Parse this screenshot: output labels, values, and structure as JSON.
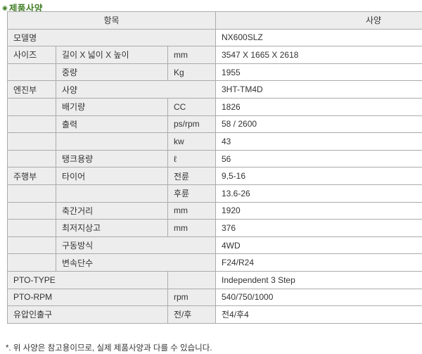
{
  "section": {
    "bullet_glyph": "◉",
    "title": "제품사양",
    "footnote": "*. 위 사양은 참고용이므로, 실제 제품사양과 다를 수 있습니다."
  },
  "colors": {
    "title_green": "#3e7c22",
    "label_bg": "#ededed",
    "border": "#ababab"
  },
  "table": {
    "header_item": "항목",
    "header_spec": "사양",
    "rows": [
      {
        "cells": [
          {
            "text": "모델명",
            "span": 3,
            "kind": "label"
          },
          {
            "text": "NX600SLZ",
            "kind": "value"
          }
        ]
      },
      {
        "cells": [
          {
            "text": "사이즈",
            "kind": "label"
          },
          {
            "text": "길이 X 넓이 X 높이",
            "kind": "label"
          },
          {
            "text": "mm",
            "kind": "label"
          },
          {
            "text": "3547 X 1665 X 2618",
            "kind": "value"
          }
        ]
      },
      {
        "cells": [
          {
            "text": "",
            "kind": "label"
          },
          {
            "text": "중량",
            "kind": "label"
          },
          {
            "text": "Kg",
            "kind": "label"
          },
          {
            "text": "1955",
            "kind": "value"
          }
        ]
      },
      {
        "cells": [
          {
            "text": "엔진부",
            "kind": "label"
          },
          {
            "text": "사양",
            "span": 2,
            "kind": "label"
          },
          {
            "text": "3HT-TM4D",
            "kind": "value"
          }
        ]
      },
      {
        "cells": [
          {
            "text": "",
            "kind": "label"
          },
          {
            "text": "배기량",
            "kind": "label"
          },
          {
            "text": "CC",
            "kind": "label"
          },
          {
            "text": "1826",
            "kind": "value"
          }
        ]
      },
      {
        "cells": [
          {
            "text": "",
            "kind": "label"
          },
          {
            "text": "출력",
            "kind": "label"
          },
          {
            "text": "ps/rpm",
            "kind": "label"
          },
          {
            "text": "58 / 2600",
            "kind": "value"
          }
        ]
      },
      {
        "cells": [
          {
            "text": "",
            "kind": "label"
          },
          {
            "text": "",
            "kind": "label"
          },
          {
            "text": "kw",
            "kind": "label"
          },
          {
            "text": "43",
            "kind": "value"
          }
        ]
      },
      {
        "cells": [
          {
            "text": "",
            "kind": "label"
          },
          {
            "text": "탱크용량",
            "kind": "label"
          },
          {
            "text": "ℓ",
            "kind": "label"
          },
          {
            "text": "56",
            "kind": "value"
          }
        ]
      },
      {
        "cells": [
          {
            "text": "주행부",
            "kind": "label"
          },
          {
            "text": "타이어",
            "kind": "label"
          },
          {
            "text": "전륜",
            "kind": "label"
          },
          {
            "text": "9,5-16",
            "kind": "value"
          }
        ]
      },
      {
        "cells": [
          {
            "text": "",
            "kind": "label"
          },
          {
            "text": "",
            "kind": "label"
          },
          {
            "text": "후륜",
            "kind": "label"
          },
          {
            "text": "13.6-26",
            "kind": "value"
          }
        ]
      },
      {
        "cells": [
          {
            "text": "",
            "kind": "label"
          },
          {
            "text": "축간거리",
            "kind": "label"
          },
          {
            "text": "mm",
            "kind": "label"
          },
          {
            "text": "1920",
            "kind": "value"
          }
        ]
      },
      {
        "cells": [
          {
            "text": "",
            "kind": "label"
          },
          {
            "text": "최저지상고",
            "kind": "label"
          },
          {
            "text": "mm",
            "kind": "label"
          },
          {
            "text": "376",
            "kind": "value"
          }
        ]
      },
      {
        "cells": [
          {
            "text": "",
            "kind": "label"
          },
          {
            "text": "구동방식",
            "span": 2,
            "kind": "label"
          },
          {
            "text": "4WD",
            "kind": "value"
          }
        ]
      },
      {
        "cells": [
          {
            "text": "",
            "kind": "label"
          },
          {
            "text": "변속단수",
            "span": 2,
            "kind": "label"
          },
          {
            "text": "F24/R24",
            "kind": "value"
          }
        ]
      },
      {
        "cells": [
          {
            "text": "PTO-TYPE",
            "span": 2,
            "kind": "label"
          },
          {
            "text": "",
            "kind": "label"
          },
          {
            "text": "Independent 3 Step",
            "kind": "value"
          }
        ]
      },
      {
        "cells": [
          {
            "text": "PTO-RPM",
            "span": 2,
            "kind": "label"
          },
          {
            "text": "rpm",
            "kind": "label"
          },
          {
            "text": "540/750/1000",
            "kind": "value"
          }
        ]
      },
      {
        "cells": [
          {
            "text": "유압인출구",
            "span": 2,
            "kind": "label"
          },
          {
            "text": "전/후",
            "kind": "label"
          },
          {
            "text": "전4/후4",
            "kind": "value"
          }
        ]
      }
    ]
  }
}
